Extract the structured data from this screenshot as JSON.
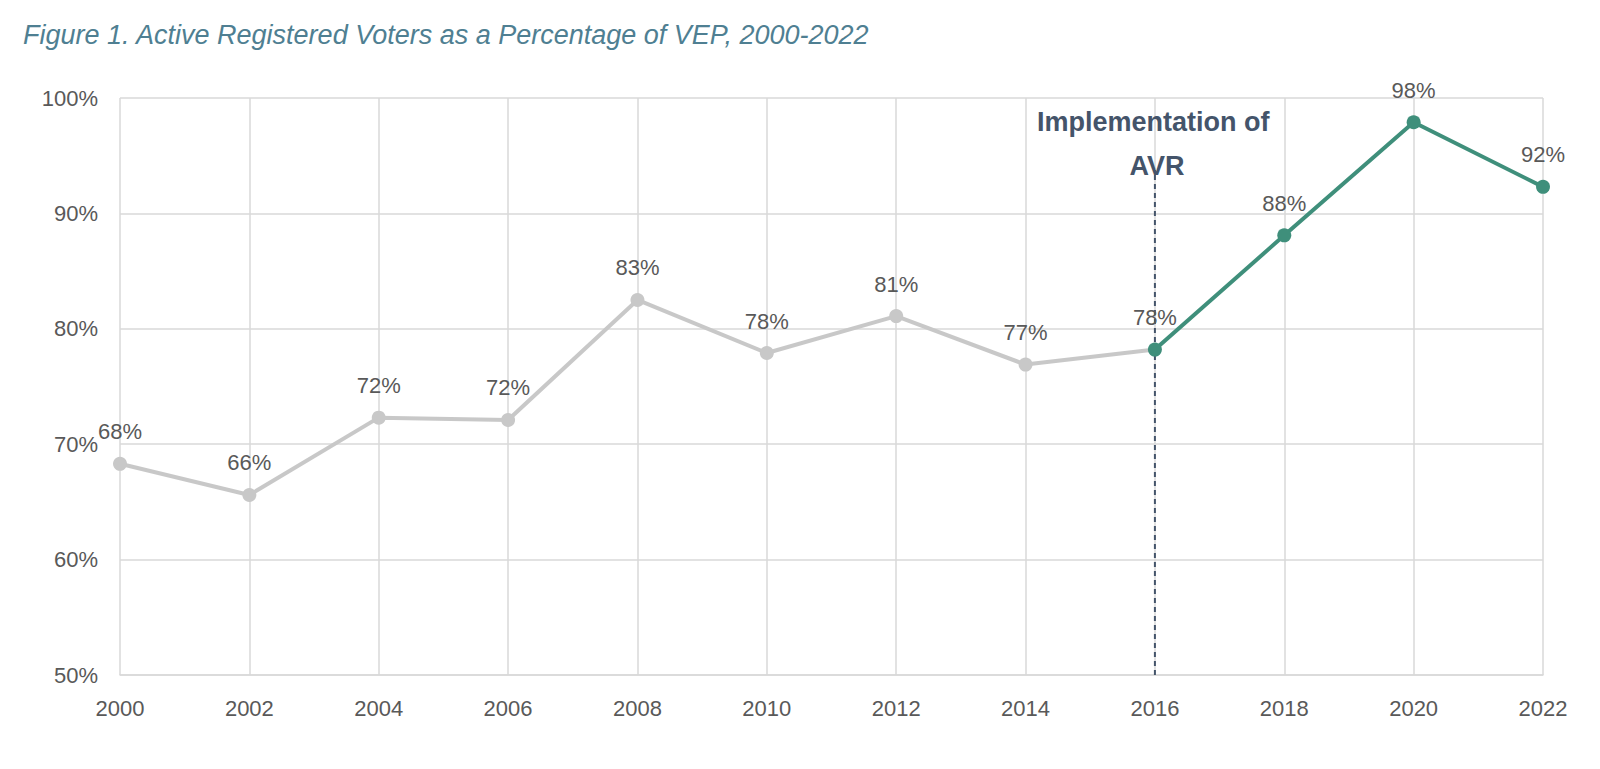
{
  "chart_data": {
    "type": "line",
    "title": "Figure 1. Active Registered Voters as a Percentage of VEP, 2000-2022",
    "categories": [
      "2000",
      "2002",
      "2004",
      "2006",
      "2008",
      "2010",
      "2012",
      "2014",
      "2016",
      "2018",
      "2020",
      "2022"
    ],
    "values": [
      68.3,
      65.6,
      72.3,
      72.1,
      82.5,
      77.9,
      81.1,
      76.9,
      78.2,
      88.1,
      97.9,
      92.3
    ],
    "value_labels": [
      "68%",
      "66%",
      "72%",
      "72%",
      "83%",
      "78%",
      "81%",
      "77%",
      "78%",
      "88%",
      "98%",
      "92%"
    ],
    "colors": [
      "#c8c8c8",
      "#c8c8c8",
      "#c8c8c8",
      "#c8c8c8",
      "#c8c8c8",
      "#c8c8c8",
      "#c8c8c8",
      "#c8c8c8",
      "#3f8f7b",
      "#3f8f7b",
      "#3f8f7b",
      "#3f8f7b"
    ],
    "ylim": [
      50,
      100
    ],
    "yticks": [
      {
        "value": 50,
        "label": "50%"
      },
      {
        "value": 60,
        "label": "60%"
      },
      {
        "value": 70,
        "label": "70%"
      },
      {
        "value": 80,
        "label": "80%"
      },
      {
        "value": 90,
        "label": "90%"
      },
      {
        "value": 100,
        "label": "100%"
      }
    ],
    "grid": true,
    "data_labels": true,
    "marker": "circle",
    "annotations": [
      {
        "x": "2016",
        "text": "Implementation of AVR"
      }
    ]
  }
}
